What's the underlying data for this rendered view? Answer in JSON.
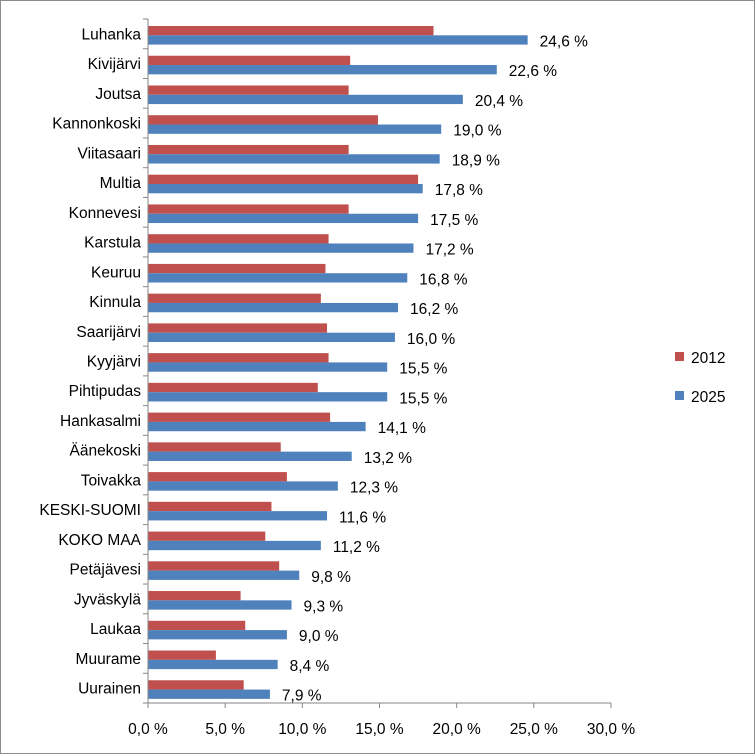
{
  "chart_data": {
    "type": "bar",
    "orientation": "horizontal",
    "categories": [
      "Luhanka",
      "Kivijärvi",
      "Joutsa",
      "Kannonkoski",
      "Viitasaari",
      "Multia",
      "Konnevesi",
      "Karstula",
      "Keuruu",
      "Kinnula",
      "Saarijärvi",
      "Kyyjärvi",
      "Pihtipudas",
      "Hankasalmi",
      "Äänekoski",
      "Toivakka",
      "KESKI-SUOMI",
      "KOKO MAA",
      "Petäjävesi",
      "Jyväskylä",
      "Laukaa",
      "Muurame",
      "Uurainen"
    ],
    "series": [
      {
        "name": "2012",
        "color": "#c0504d",
        "values": [
          18.5,
          13.1,
          13.0,
          14.9,
          13.0,
          17.5,
          13.0,
          11.7,
          11.5,
          11.2,
          11.6,
          11.7,
          11.0,
          11.8,
          8.6,
          9.0,
          8.0,
          7.6,
          8.5,
          6.0,
          6.3,
          4.4,
          6.2
        ]
      },
      {
        "name": "2025",
        "color": "#4f81bd",
        "values": [
          24.6,
          22.6,
          20.4,
          19.0,
          18.9,
          17.8,
          17.5,
          17.2,
          16.8,
          16.2,
          16.0,
          15.5,
          15.5,
          14.1,
          13.2,
          12.3,
          11.6,
          11.2,
          9.8,
          9.3,
          9.0,
          8.4,
          7.9
        ]
      }
    ],
    "data_labels": [
      "24,6 %",
      "22,6 %",
      "20,4 %",
      "19,0 %",
      "18,9 %",
      "17,8 %",
      "17,5 %",
      "17,2 %",
      "16,8 %",
      "16,2 %",
      "16,0 %",
      "15,5 %",
      "15,5 %",
      "14,1 %",
      "13,2 %",
      "12,3 %",
      "11,6 %",
      "11,2 %",
      "9,8 %",
      "9,3 %",
      "9,0 %",
      "8,4 %",
      "7,9 %"
    ],
    "xlim": [
      0,
      30
    ],
    "x_ticks": [
      0,
      5,
      10,
      15,
      20,
      25,
      30
    ],
    "x_tick_labels": [
      "0,0 %",
      "5,0 %",
      "10,0 %",
      "15,0 %",
      "20,0 %",
      "25,0 %",
      "30,0 %"
    ],
    "grid": false,
    "legend": {
      "position": "right",
      "entries": [
        "2012",
        "2025"
      ]
    }
  }
}
